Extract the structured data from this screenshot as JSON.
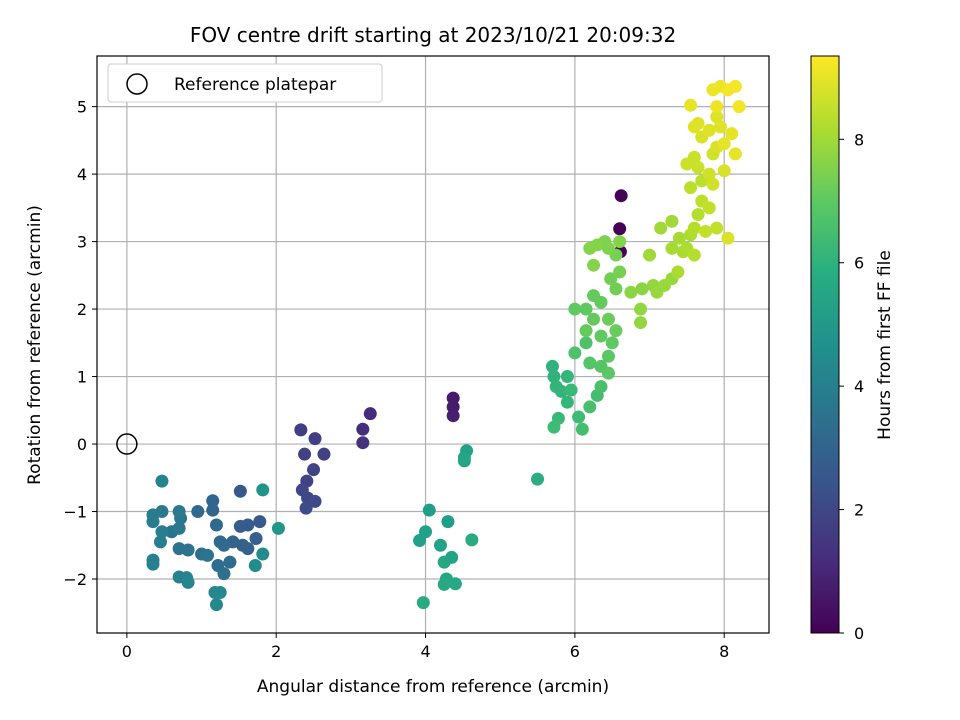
{
  "chart_data": {
    "type": "scatter",
    "title": "FOV centre drift starting at 2023/10/21 20:09:32",
    "xlabel": "Angular distance from reference (arcmin)",
    "ylabel": "Rotation from reference (arcmin)",
    "xlim": [
      -0.4,
      8.6
    ],
    "ylim": [
      -2.8,
      5.75
    ],
    "xticks": [
      0,
      2,
      4,
      6,
      8
    ],
    "yticks": [
      -2,
      -1,
      0,
      1,
      2,
      3,
      4,
      5
    ],
    "grid": true,
    "legend": {
      "placement": "top-left",
      "entries": [
        "Reference platepar"
      ]
    },
    "reference_point": {
      "x": 0,
      "y": 0
    },
    "colorbar": {
      "label": "Hours from first FF file",
      "colormap": "viridis",
      "range": [
        0,
        9.35
      ],
      "ticks": [
        0,
        2,
        4,
        6,
        8
      ]
    },
    "points": [
      [
        6.62,
        3.68,
        0.1
      ],
      [
        6.6,
        3.19,
        0.1
      ],
      [
        6.61,
        2.85,
        0.1
      ],
      [
        4.37,
        0.68,
        0.7
      ],
      [
        4.37,
        0.55,
        0.7
      ],
      [
        4.37,
        0.42,
        0.8
      ],
      [
        3.26,
        0.45,
        1.2
      ],
      [
        3.16,
        0.22,
        1.2
      ],
      [
        3.16,
        0.02,
        1.3
      ],
      [
        2.33,
        0.21,
        1.7
      ],
      [
        2.52,
        0.08,
        1.7
      ],
      [
        2.38,
        -0.15,
        1.8
      ],
      [
        2.64,
        -0.15,
        1.8
      ],
      [
        2.5,
        -0.38,
        1.9
      ],
      [
        2.41,
        -0.55,
        1.9
      ],
      [
        2.35,
        -0.68,
        2.0
      ],
      [
        2.42,
        -0.8,
        2.0
      ],
      [
        2.52,
        -0.85,
        2.1
      ],
      [
        2.4,
        -0.95,
        2.1
      ],
      [
        1.52,
        -0.7,
        2.6
      ],
      [
        1.78,
        -1.15,
        2.6
      ],
      [
        1.62,
        -1.2,
        2.7
      ],
      [
        1.52,
        -1.22,
        2.7
      ],
      [
        1.73,
        -1.4,
        2.8
      ],
      [
        1.55,
        -1.5,
        2.8
      ],
      [
        1.62,
        -1.55,
        2.9
      ],
      [
        1.42,
        -1.45,
        2.9
      ],
      [
        1.15,
        -0.84,
        3.0
      ],
      [
        1.15,
        -0.98,
        3.0
      ],
      [
        0.95,
        -1.0,
        3.1
      ],
      [
        1.2,
        -1.2,
        3.1
      ],
      [
        1.25,
        -1.45,
        3.2
      ],
      [
        1.3,
        -1.5,
        3.2
      ],
      [
        1.38,
        -1.75,
        3.3
      ],
      [
        1.22,
        -1.8,
        3.3
      ],
      [
        1.3,
        -1.92,
        3.4
      ],
      [
        1.0,
        -1.63,
        3.4
      ],
      [
        1.08,
        -1.65,
        3.5
      ],
      [
        0.82,
        -1.57,
        3.5
      ],
      [
        0.7,
        -1.55,
        3.6
      ],
      [
        0.6,
        -1.3,
        3.6
      ],
      [
        0.7,
        -1.25,
        3.7
      ],
      [
        0.72,
        -1.1,
        3.7
      ],
      [
        0.7,
        -1.0,
        3.8
      ],
      [
        0.47,
        -1.0,
        3.8
      ],
      [
        0.35,
        -1.05,
        3.9
      ],
      [
        0.35,
        -1.15,
        3.9
      ],
      [
        0.47,
        -1.3,
        4.0
      ],
      [
        0.45,
        -1.45,
        4.0
      ],
      [
        0.35,
        -1.72,
        4.1
      ],
      [
        0.35,
        -1.78,
        4.1
      ],
      [
        0.7,
        -1.97,
        4.2
      ],
      [
        0.8,
        -1.98,
        4.2
      ],
      [
        0.82,
        -2.05,
        4.3
      ],
      [
        1.18,
        -2.2,
        4.3
      ],
      [
        1.25,
        -2.2,
        4.4
      ],
      [
        1.2,
        -2.38,
        4.4
      ],
      [
        0.47,
        -0.55,
        4.2
      ],
      [
        1.82,
        -1.63,
        4.5
      ],
      [
        1.72,
        -1.8,
        4.5
      ],
      [
        1.82,
        -0.68,
        4.8
      ],
      [
        2.03,
        -1.25,
        4.9
      ],
      [
        4.05,
        -0.98,
        5.2
      ],
      [
        4.3,
        -1.15,
        5.2
      ],
      [
        4.0,
        -1.3,
        5.3
      ],
      [
        3.92,
        -1.43,
        5.3
      ],
      [
        4.2,
        -1.5,
        5.4
      ],
      [
        4.35,
        -1.68,
        5.4
      ],
      [
        4.25,
        -1.75,
        5.5
      ],
      [
        4.28,
        -2.0,
        5.5
      ],
      [
        4.25,
        -2.08,
        5.6
      ],
      [
        4.4,
        -2.07,
        5.6
      ],
      [
        3.97,
        -2.35,
        5.7
      ],
      [
        4.62,
        -1.42,
        5.7
      ],
      [
        4.52,
        -0.2,
        5.4
      ],
      [
        4.55,
        -0.1,
        5.4
      ],
      [
        4.52,
        -0.25,
        5.5
      ],
      [
        5.5,
        -0.52,
        5.8
      ],
      [
        5.7,
        1.15,
        6.0
      ],
      [
        5.72,
        1.0,
        6.0
      ],
      [
        5.75,
        0.85,
        6.1
      ],
      [
        5.82,
        0.78,
        6.1
      ],
      [
        5.9,
        0.62,
        6.2
      ],
      [
        5.9,
        1.0,
        6.2
      ],
      [
        5.95,
        0.8,
        6.3
      ],
      [
        5.78,
        0.38,
        6.3
      ],
      [
        5.72,
        0.25,
        6.4
      ],
      [
        6.05,
        0.4,
        6.4
      ],
      [
        6.1,
        0.22,
        6.5
      ],
      [
        6.3,
        0.72,
        6.5
      ],
      [
        6.2,
        0.55,
        6.6
      ],
      [
        6.35,
        0.85,
        6.6
      ],
      [
        6.0,
        1.35,
        6.7
      ],
      [
        6.15,
        1.5,
        6.7
      ],
      [
        6.2,
        1.2,
        6.8
      ],
      [
        6.35,
        1.15,
        6.8
      ],
      [
        6.45,
        1.05,
        6.9
      ],
      [
        6.45,
        1.3,
        6.9
      ],
      [
        6.5,
        1.5,
        7.0
      ],
      [
        6.35,
        1.6,
        7.0
      ],
      [
        6.25,
        1.85,
        7.1
      ],
      [
        6.15,
        1.68,
        7.1
      ],
      [
        6.0,
        2.0,
        7.0
      ],
      [
        6.15,
        2.0,
        7.0
      ],
      [
        6.25,
        2.2,
        7.1
      ],
      [
        6.35,
        2.1,
        7.1
      ],
      [
        6.45,
        1.85,
        7.2
      ],
      [
        6.55,
        1.68,
        7.2
      ],
      [
        6.55,
        2.3,
        7.3
      ],
      [
        6.48,
        2.45,
        7.3
      ],
      [
        6.6,
        2.55,
        7.4
      ],
      [
        6.55,
        2.8,
        7.4
      ],
      [
        6.4,
        3.0,
        7.5
      ],
      [
        6.45,
        2.9,
        7.5
      ],
      [
        6.6,
        3.0,
        7.6
      ],
      [
        6.3,
        2.95,
        7.6
      ],
      [
        6.25,
        2.65,
        7.6
      ],
      [
        6.2,
        2.9,
        7.6
      ],
      [
        6.75,
        2.25,
        7.7
      ],
      [
        6.9,
        2.3,
        7.7
      ],
      [
        6.88,
        1.8,
        7.8
      ],
      [
        6.88,
        2.0,
        7.8
      ],
      [
        7.05,
        2.35,
        7.8
      ],
      [
        7.1,
        2.25,
        7.9
      ],
      [
        7.2,
        2.35,
        7.9
      ],
      [
        7.3,
        2.45,
        7.9
      ],
      [
        7.0,
        2.8,
        8.0
      ],
      [
        7.15,
        3.2,
        8.0
      ],
      [
        7.3,
        3.3,
        8.0
      ],
      [
        7.4,
        3.05,
        8.1
      ],
      [
        7.3,
        2.9,
        8.1
      ],
      [
        7.45,
        2.85,
        8.1
      ],
      [
        7.5,
        2.9,
        8.2
      ],
      [
        7.55,
        3.1,
        8.2
      ],
      [
        7.38,
        2.55,
        8.2
      ],
      [
        7.6,
        2.8,
        8.3
      ],
      [
        7.6,
        3.2,
        8.3
      ],
      [
        7.65,
        3.4,
        8.3
      ],
      [
        7.55,
        3.8,
        8.4
      ],
      [
        7.7,
        3.6,
        8.4
      ],
      [
        7.7,
        3.9,
        8.4
      ],
      [
        7.8,
        3.5,
        8.5
      ],
      [
        7.75,
        3.15,
        8.5
      ],
      [
        7.9,
        3.2,
        8.5
      ],
      [
        7.6,
        4.25,
        8.6
      ],
      [
        7.5,
        4.15,
        8.6
      ],
      [
        7.65,
        4.1,
        8.6
      ],
      [
        7.8,
        4.0,
        8.7
      ],
      [
        7.85,
        3.85,
        8.7
      ],
      [
        7.85,
        4.3,
        8.7
      ],
      [
        7.9,
        4.4,
        8.8
      ],
      [
        8.0,
        4.05,
        8.8
      ],
      [
        8.05,
        3.05,
        8.8
      ],
      [
        7.7,
        4.55,
        8.8
      ],
      [
        7.8,
        4.65,
        8.9
      ],
      [
        7.9,
        4.85,
        8.9
      ],
      [
        7.95,
        4.7,
        8.9
      ],
      [
        8.1,
        4.6,
        9.0
      ],
      [
        8.15,
        4.3,
        9.0
      ],
      [
        8.0,
        4.45,
        9.0
      ],
      [
        7.55,
        5.02,
        9.0
      ],
      [
        7.9,
        5.0,
        9.1
      ],
      [
        7.85,
        5.25,
        9.1
      ],
      [
        7.95,
        5.3,
        9.1
      ],
      [
        8.05,
        5.25,
        9.2
      ],
      [
        8.15,
        5.3,
        9.2
      ],
      [
        8.2,
        5.0,
        9.2
      ],
      [
        7.6,
        4.7,
        8.9
      ],
      [
        7.65,
        4.75,
        8.9
      ]
    ]
  }
}
